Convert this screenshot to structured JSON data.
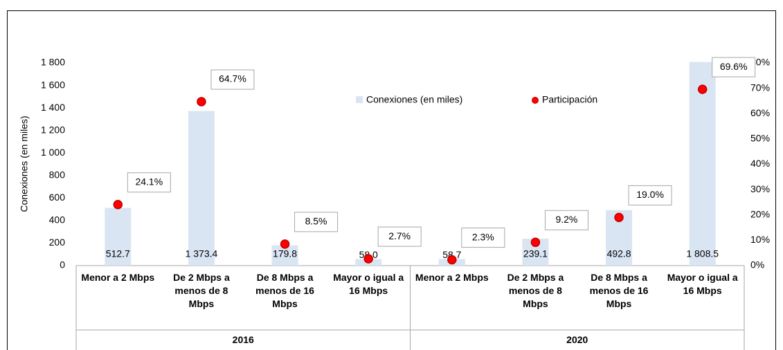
{
  "chart_data": {
    "type": "bar-dot",
    "y_label": "Conexiones (en miles)",
    "categories": [
      "Menor a 2 Mbps",
      "De 2 Mbps a menos de 8 Mbps",
      "De 8 Mbps a menos de 16 Mbps",
      "Mayor o igual a 16 Mbps",
      "Menor a 2 Mbps",
      "De 2 Mbps a menos de 8 Mbps",
      "De 8 Mbps a menos de 16 Mbps",
      "Mayor o igual a 16 Mbps"
    ],
    "groups": [
      "2016",
      "2020"
    ],
    "series": [
      {
        "name": "Conexiones (en miles)",
        "color": "#dae5f3",
        "values": [
          512.7,
          1373.4,
          179.8,
          58.0,
          58.7,
          239.1,
          492.8,
          1808.5
        ],
        "value_labels": [
          "512.7",
          "1 373.4",
          "179.8",
          "58.0",
          "58.7",
          "239.1",
          "492.8",
          "1 808.5"
        ]
      },
      {
        "name": "Participación",
        "color": "#ff0000",
        "axis": "y2",
        "values": [
          24.1,
          64.7,
          8.5,
          2.7,
          2.3,
          9.2,
          19.0,
          69.6
        ],
        "value_labels": [
          "24.1%",
          "64.7%",
          "8.5%",
          "2.7%",
          "2.3%",
          "9.2%",
          "19.0%",
          "69.6%"
        ]
      }
    ],
    "ylim": [
      0,
      1800
    ],
    "yticks": [
      0,
      200,
      400,
      600,
      800,
      {
        "value": 1000,
        "label": "1 000"
      },
      {
        "value": 1200,
        "label": "1 200"
      },
      {
        "value": 1400,
        "label": "1 400"
      },
      {
        "value": 1600,
        "label": "1 600"
      },
      {
        "value": 1800,
        "label": "1 800"
      }
    ],
    "y2lim": [
      0,
      80
    ],
    "y2ticks": [
      {
        "value": 0,
        "label": "0%"
      },
      {
        "value": 10,
        "label": "10%"
      },
      {
        "value": 20,
        "label": "20%"
      },
      {
        "value": 30,
        "label": "30%"
      },
      {
        "value": 40,
        "label": "40%"
      },
      {
        "value": 50,
        "label": "50%"
      },
      {
        "value": 60,
        "label": "60%"
      },
      {
        "value": 70,
        "label": "70%"
      },
      {
        "value": 80,
        "label": "80%"
      }
    ]
  }
}
